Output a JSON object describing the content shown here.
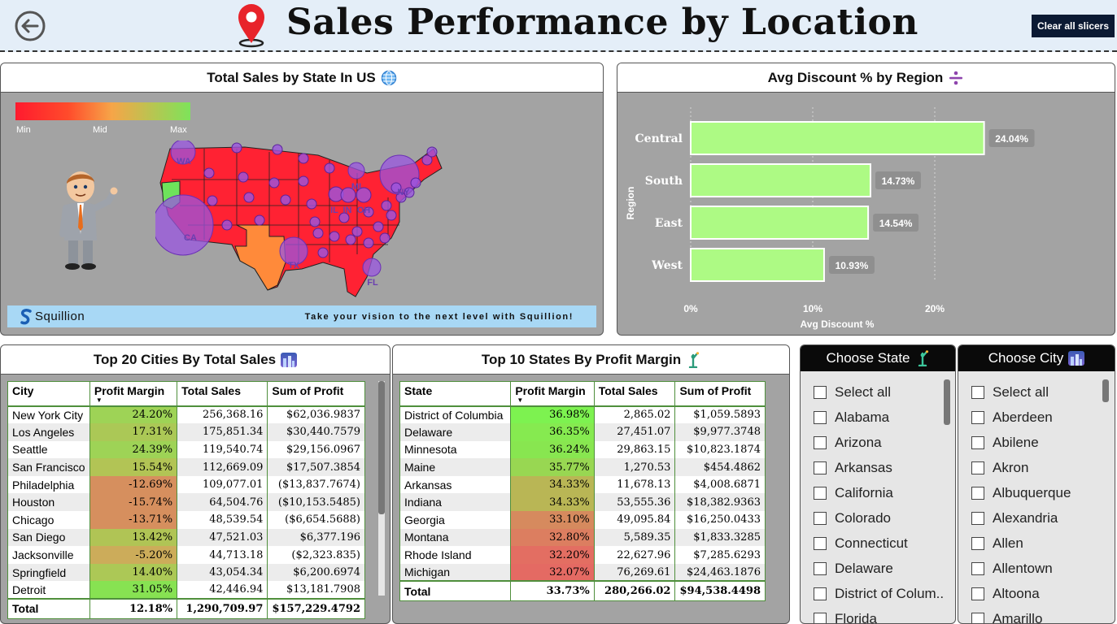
{
  "header": {
    "title": "Sales Performance by Location",
    "clear_label": "Clear all slicers"
  },
  "map_panel": {
    "title": "Total Sales by State In US",
    "legend": {
      "min": "Min",
      "mid": "Mid",
      "max": "Max",
      "colors": [
        "#ff1a2e",
        "#f6a548",
        "#7ee35a"
      ]
    },
    "bubble_labels": [
      "WA",
      "CA",
      "TX",
      "NY",
      "MI",
      "IL",
      "IN",
      "OH",
      "FL"
    ],
    "brand": "Squillion",
    "tagline": "Take your vision to the next level with Squillion!"
  },
  "discount_panel": {
    "title": "Avg Discount % by Region",
    "chart_data": {
      "type": "bar",
      "orientation": "horizontal",
      "categories": [
        "Central",
        "South",
        "East",
        "West"
      ],
      "values": [
        24.04,
        14.73,
        14.54,
        10.93
      ],
      "data_labels": [
        "24.04%",
        "14.73%",
        "14.54%",
        "10.93%"
      ],
      "xlabel": "Avg Discount %",
      "ylabel": "Region",
      "xlim": [
        0,
        25
      ],
      "xticks": [
        "0%",
        "10%",
        "20%"
      ],
      "bar_color": "#adfa84",
      "grid": "vertical dotted"
    }
  },
  "cities_table": {
    "title": "Top 20 Cities By Total Sales",
    "columns": [
      "City",
      "Profit Margin",
      "Total Sales",
      "Sum of Profit"
    ],
    "rows": [
      [
        "New York City",
        "24.20%",
        "256,368.16",
        "$62,036.9837"
      ],
      [
        "Los Angeles",
        "17.31%",
        "175,851.34",
        "$30,440.7579"
      ],
      [
        "Seattle",
        "24.39%",
        "119,540.74",
        "$29,156.0967"
      ],
      [
        "San Francisco",
        "15.54%",
        "112,669.09",
        "$17,507.3854"
      ],
      [
        "Philadelphia",
        "-12.69%",
        "109,077.01",
        "($13,837.7674)"
      ],
      [
        "Houston",
        "-15.74%",
        "64,504.76",
        "($10,153.5485)"
      ],
      [
        "Chicago",
        "-13.71%",
        "48,539.54",
        "($6,654.5688)"
      ],
      [
        "San Diego",
        "13.42%",
        "47,521.03",
        "$6,377.196"
      ],
      [
        "Jacksonville",
        "-5.20%",
        "44,713.18",
        "($2,323.835)"
      ],
      [
        "Springfield",
        "14.40%",
        "43,054.34",
        "$6,200.6974"
      ],
      [
        "Detroit",
        "31.05%",
        "42,446.94",
        "$13,181.7908"
      ]
    ],
    "margin_colors": [
      "#9ed356",
      "#abc856",
      "#9ed356",
      "#b2c455",
      "#d68f5e",
      "#d68f5e",
      "#d68f5e",
      "#b0c455",
      "#ccac5a",
      "#acc856",
      "#87e252"
    ],
    "total": [
      "Total",
      "12.18%",
      "1,290,709.97",
      "$157,229.4792"
    ]
  },
  "states_table": {
    "title": "Top 10 States By Profit Margin",
    "columns": [
      "State",
      "Profit Margin",
      "Total Sales",
      "Sum of Profit"
    ],
    "rows": [
      [
        "District of Columbia",
        "36.98%",
        "2,865.02",
        "$1,059.5893"
      ],
      [
        "Delaware",
        "36.35%",
        "27,451.07",
        "$9,977.3748"
      ],
      [
        "Minnesota",
        "36.24%",
        "29,863.15",
        "$10,823.1874"
      ],
      [
        "Maine",
        "35.77%",
        "1,270.53",
        "$454.4862"
      ],
      [
        "Arkansas",
        "34.33%",
        "11,678.13",
        "$4,008.6871"
      ],
      [
        "Indiana",
        "34.33%",
        "53,555.36",
        "$18,382.9363"
      ],
      [
        "Georgia",
        "33.10%",
        "49,095.84",
        "$16,250.0433"
      ],
      [
        "Montana",
        "32.80%",
        "5,589.35",
        "$1,833.3285"
      ],
      [
        "Rhode Island",
        "32.20%",
        "22,627.96",
        "$7,285.6293"
      ],
      [
        "Michigan",
        "32.07%",
        "76,269.61",
        "$24,463.1876"
      ]
    ],
    "margin_colors": [
      "#7df250",
      "#86ea50",
      "#88e650",
      "#98d752",
      "#b9b655",
      "#b9b655",
      "#d68a5e",
      "#dc7e60",
      "#e36e62",
      "#e46a63"
    ],
    "total": [
      "Total",
      "33.73%",
      "280,266.02",
      "$94,538.4498"
    ]
  },
  "state_slicer": {
    "title": "Choose State",
    "items": [
      "Select all",
      "Alabama",
      "Arizona",
      "Arkansas",
      "California",
      "Colorado",
      "Connecticut",
      "Delaware",
      "District of Colum...",
      "Florida"
    ]
  },
  "city_slicer": {
    "title": "Choose City",
    "items": [
      "Select all",
      "Aberdeen",
      "Abilene",
      "Akron",
      "Albuquerque",
      "Alexandria",
      "Allen",
      "Allentown",
      "Altoona",
      "Amarillo"
    ]
  }
}
